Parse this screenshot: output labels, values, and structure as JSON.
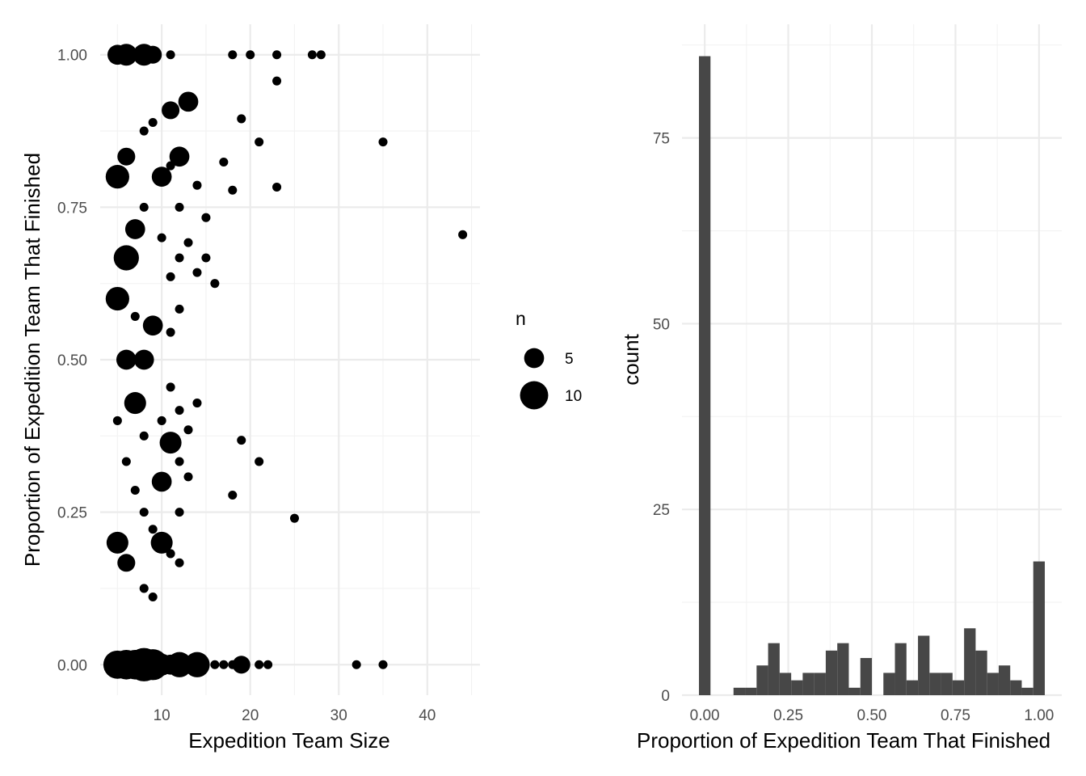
{
  "chart_data": [
    {
      "type": "scatter",
      "xlabel": "Expedition Team Size",
      "ylabel": "Proportion of Expedition Team That Finished",
      "xlim": [
        3.05,
        45.95
      ],
      "ylim": [
        -0.05,
        1.05
      ],
      "xticks": [
        10,
        20,
        30,
        40
      ],
      "xtick_labels": [
        "10",
        "20",
        "30",
        "40"
      ],
      "yticks": [
        0,
        0.25,
        0.5,
        0.75,
        1
      ],
      "ytick_labels": [
        "0.00",
        "0.25",
        "0.50",
        "0.75",
        "1.00"
      ],
      "grid": true,
      "legend": {
        "title": "n",
        "position": "right",
        "entries": [
          {
            "label": "5",
            "n": 5
          },
          {
            "label": "10",
            "n": 10
          }
        ]
      },
      "points": [
        {
          "x": 5,
          "y": 1.0,
          "n": 5
        },
        {
          "x": 6,
          "y": 1.0,
          "n": 6
        },
        {
          "x": 8,
          "y": 1.0,
          "n": 6
        },
        {
          "x": 9,
          "y": 1.0,
          "n": 4
        },
        {
          "x": 11,
          "y": 1.0,
          "n": 1
        },
        {
          "x": 18,
          "y": 1.0,
          "n": 1
        },
        {
          "x": 20,
          "y": 1.0,
          "n": 1
        },
        {
          "x": 23,
          "y": 1.0,
          "n": 1
        },
        {
          "x": 27,
          "y": 1.0,
          "n": 1
        },
        {
          "x": 28,
          "y": 1.0,
          "n": 1
        },
        {
          "x": 23,
          "y": 0.957,
          "n": 1
        },
        {
          "x": 11,
          "y": 0.909,
          "n": 4
        },
        {
          "x": 13,
          "y": 0.923,
          "n": 5
        },
        {
          "x": 19,
          "y": 0.895,
          "n": 1
        },
        {
          "x": 9,
          "y": 0.889,
          "n": 1
        },
        {
          "x": 8,
          "y": 0.875,
          "n": 1
        },
        {
          "x": 21,
          "y": 0.857,
          "n": 1
        },
        {
          "x": 35,
          "y": 0.857,
          "n": 1
        },
        {
          "x": 6,
          "y": 0.833,
          "n": 4
        },
        {
          "x": 12,
          "y": 0.833,
          "n": 5
        },
        {
          "x": 17,
          "y": 0.824,
          "n": 1
        },
        {
          "x": 11,
          "y": 0.818,
          "n": 1
        },
        {
          "x": 5,
          "y": 0.8,
          "n": 7
        },
        {
          "x": 10,
          "y": 0.8,
          "n": 5
        },
        {
          "x": 14,
          "y": 0.786,
          "n": 1
        },
        {
          "x": 23,
          "y": 0.783,
          "n": 1
        },
        {
          "x": 18,
          "y": 0.778,
          "n": 1
        },
        {
          "x": 8,
          "y": 0.75,
          "n": 1
        },
        {
          "x": 12,
          "y": 0.75,
          "n": 1
        },
        {
          "x": 15,
          "y": 0.733,
          "n": 1
        },
        {
          "x": 7,
          "y": 0.714,
          "n": 5
        },
        {
          "x": 44,
          "y": 0.705,
          "n": 1
        },
        {
          "x": 10,
          "y": 0.7,
          "n": 1
        },
        {
          "x": 13,
          "y": 0.692,
          "n": 1
        },
        {
          "x": 6,
          "y": 0.667,
          "n": 8
        },
        {
          "x": 12,
          "y": 0.667,
          "n": 1
        },
        {
          "x": 15,
          "y": 0.667,
          "n": 1
        },
        {
          "x": 14,
          "y": 0.643,
          "n": 1
        },
        {
          "x": 11,
          "y": 0.636,
          "n": 1
        },
        {
          "x": 16,
          "y": 0.625,
          "n": 1
        },
        {
          "x": 5,
          "y": 0.6,
          "n": 7
        },
        {
          "x": 12,
          "y": 0.583,
          "n": 1
        },
        {
          "x": 7,
          "y": 0.571,
          "n": 1
        },
        {
          "x": 9,
          "y": 0.556,
          "n": 5
        },
        {
          "x": 11,
          "y": 0.545,
          "n": 1
        },
        {
          "x": 6,
          "y": 0.5,
          "n": 5
        },
        {
          "x": 8,
          "y": 0.5,
          "n": 5
        },
        {
          "x": 11,
          "y": 0.455,
          "n": 1
        },
        {
          "x": 7,
          "y": 0.429,
          "n": 6
        },
        {
          "x": 14,
          "y": 0.429,
          "n": 1
        },
        {
          "x": 12,
          "y": 0.417,
          "n": 1
        },
        {
          "x": 5,
          "y": 0.4,
          "n": 1
        },
        {
          "x": 10,
          "y": 0.4,
          "n": 1
        },
        {
          "x": 13,
          "y": 0.385,
          "n": 1
        },
        {
          "x": 8,
          "y": 0.375,
          "n": 1
        },
        {
          "x": 19,
          "y": 0.368,
          "n": 1
        },
        {
          "x": 11,
          "y": 0.364,
          "n": 6
        },
        {
          "x": 6,
          "y": 0.333,
          "n": 1
        },
        {
          "x": 12,
          "y": 0.333,
          "n": 1
        },
        {
          "x": 21,
          "y": 0.333,
          "n": 1
        },
        {
          "x": 13,
          "y": 0.308,
          "n": 1
        },
        {
          "x": 10,
          "y": 0.3,
          "n": 5
        },
        {
          "x": 7,
          "y": 0.286,
          "n": 1
        },
        {
          "x": 18,
          "y": 0.278,
          "n": 1
        },
        {
          "x": 8,
          "y": 0.25,
          "n": 1
        },
        {
          "x": 12,
          "y": 0.25,
          "n": 1
        },
        {
          "x": 25,
          "y": 0.24,
          "n": 1
        },
        {
          "x": 9,
          "y": 0.222,
          "n": 1
        },
        {
          "x": 5,
          "y": 0.2,
          "n": 6
        },
        {
          "x": 10,
          "y": 0.2,
          "n": 6
        },
        {
          "x": 11,
          "y": 0.182,
          "n": 1
        },
        {
          "x": 12,
          "y": 0.167,
          "n": 1
        },
        {
          "x": 6,
          "y": 0.167,
          "n": 4
        },
        {
          "x": 8,
          "y": 0.125,
          "n": 1
        },
        {
          "x": 9,
          "y": 0.111,
          "n": 1
        },
        {
          "x": 5,
          "y": 0.0,
          "n": 10
        },
        {
          "x": 6,
          "y": 0.0,
          "n": 11
        },
        {
          "x": 7,
          "y": 0.0,
          "n": 11
        },
        {
          "x": 8,
          "y": 0.0,
          "n": 14
        },
        {
          "x": 9,
          "y": 0.0,
          "n": 12
        },
        {
          "x": 10,
          "y": 0.0,
          "n": 6
        },
        {
          "x": 11,
          "y": 0.0,
          "n": 5
        },
        {
          "x": 12,
          "y": 0.0,
          "n": 8
        },
        {
          "x": 14,
          "y": 0.0,
          "n": 8
        },
        {
          "x": 16,
          "y": 0.0,
          "n": 1
        },
        {
          "x": 17,
          "y": 0.0,
          "n": 1
        },
        {
          "x": 18,
          "y": 0.0,
          "n": 1
        },
        {
          "x": 19,
          "y": 0.0,
          "n": 4
        },
        {
          "x": 21,
          "y": 0.0,
          "n": 1
        },
        {
          "x": 22,
          "y": 0.0,
          "n": 1
        },
        {
          "x": 32,
          "y": 0.0,
          "n": 1
        },
        {
          "x": 35,
          "y": 0.0,
          "n": 1
        }
      ]
    },
    {
      "type": "bar",
      "xlabel": "Proportion of Expedition Team That Finished",
      "ylabel": "count",
      "xlim": [
        -0.068,
        1.068
      ],
      "ylim": [
        0,
        90.3
      ],
      "xticks": [
        0,
        0.25,
        0.5,
        0.75,
        1
      ],
      "xtick_labels": [
        "0.00",
        "0.25",
        "0.50",
        "0.75",
        "1.00"
      ],
      "yticks": [
        0,
        25,
        50,
        75
      ],
      "ytick_labels": [
        "0",
        "25",
        "50",
        "75"
      ],
      "grid": true,
      "bins": 30,
      "bin_width": 0.0345,
      "bin_centers": [
        0.0,
        0.0345,
        0.069,
        0.1034,
        0.1379,
        0.1724,
        0.2069,
        0.2414,
        0.2759,
        0.3103,
        0.3448,
        0.3793,
        0.4138,
        0.4483,
        0.4828,
        0.5172,
        0.5517,
        0.5862,
        0.6207,
        0.6552,
        0.6897,
        0.7241,
        0.7586,
        0.7931,
        0.8276,
        0.8621,
        0.8966,
        0.931,
        0.9655,
        1.0
      ],
      "counts": [
        86,
        0,
        0,
        1,
        1,
        4,
        7,
        3,
        2,
        3,
        3,
        6,
        7,
        1,
        5,
        0,
        3,
        7,
        2,
        8,
        3,
        3,
        2,
        9,
        6,
        3,
        4,
        2,
        1,
        18
      ],
      "bar_color": "#474747"
    }
  ]
}
